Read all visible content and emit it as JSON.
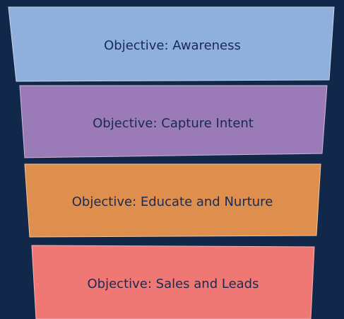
{
  "diagram": {
    "stages": [
      {
        "label": "Objective: Awareness",
        "color": "#8fb0dc"
      },
      {
        "label": "Objective: Capture Intent",
        "color": "#9b7bb7"
      },
      {
        "label": "Objective: Educate and Nurture",
        "color": "#df8f4d"
      },
      {
        "label": "Objective: Sales and Leads",
        "color": "#ef7875"
      }
    ],
    "background": "#12284a"
  }
}
